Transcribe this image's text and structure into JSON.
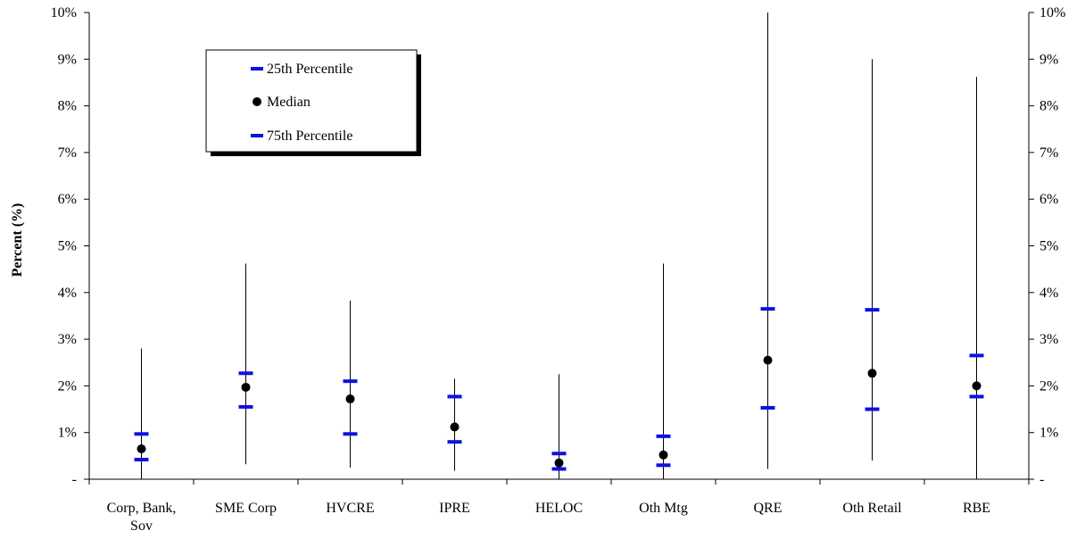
{
  "chart_data": {
    "type": "range-percentile",
    "ylabel": "Percent (%)",
    "ylim": [
      0,
      10
    ],
    "y_tick_labels": [
      "-",
      "1%",
      "2%",
      "3%",
      "4%",
      "5%",
      "6%",
      "7%",
      "8%",
      "9%",
      "10%"
    ],
    "y_tick_values": [
      0,
      1,
      2,
      3,
      4,
      5,
      6,
      7,
      8,
      9,
      10
    ],
    "secondary_y_axis": true,
    "grid": false,
    "legend_position": "top-left",
    "legend": [
      "25th Percentile",
      "Median",
      "75th Percentile"
    ],
    "colors": {
      "percentile": "#1010e0",
      "median": "#000000",
      "range": "#000000"
    },
    "categories": [
      [
        "Corp, Bank,",
        "Sov"
      ],
      [
        "SME Corp"
      ],
      [
        "HVCRE"
      ],
      [
        "IPRE"
      ],
      [
        "HELOC"
      ],
      [
        "Oth Mtg"
      ],
      [
        "QRE"
      ],
      [
        "Oth Retail"
      ],
      [
        "RBE"
      ]
    ],
    "min": [
      0.0,
      0.32,
      0.25,
      0.18,
      0.0,
      0.0,
      0.22,
      0.4,
      0.0
    ],
    "max": [
      2.8,
      4.62,
      3.83,
      2.15,
      2.25,
      4.62,
      10.0,
      9.0,
      8.62
    ],
    "p25": [
      0.42,
      1.55,
      0.97,
      0.8,
      0.22,
      0.3,
      1.53,
      1.5,
      1.77
    ],
    "median": [
      0.65,
      1.97,
      1.72,
      1.12,
      0.35,
      0.52,
      2.55,
      2.27,
      2.0
    ],
    "p75": [
      0.97,
      2.27,
      2.1,
      1.77,
      0.55,
      0.92,
      3.65,
      3.63,
      2.65
    ]
  }
}
